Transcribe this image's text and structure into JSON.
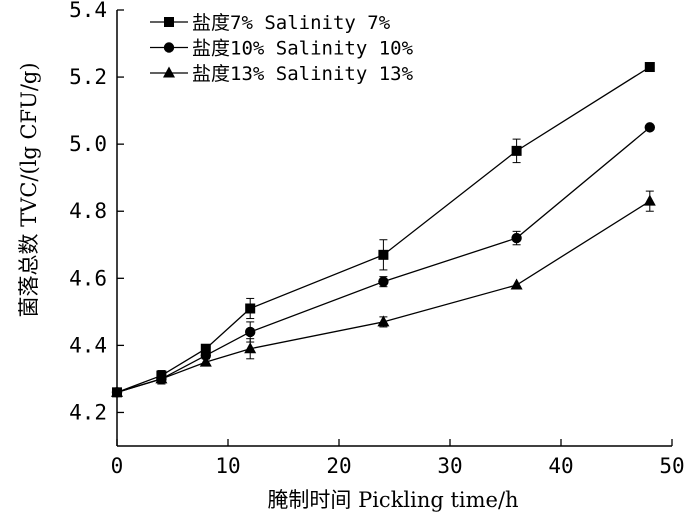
{
  "chart_data": {
    "type": "line",
    "xlabel": "腌制时间 Pickling time/h",
    "ylabel": "菌落总数 TVC/(lg CFU/g)",
    "xlim": [
      0,
      50
    ],
    "ylim": [
      4.1,
      5.4
    ],
    "xticks": [
      "0",
      "10",
      "20",
      "30",
      "40",
      "50"
    ],
    "yticks": [
      "4.2",
      "4.4",
      "4.6",
      "4.8",
      "5.0",
      "5.2",
      "5.4"
    ],
    "grid": false,
    "legend_position": "top-left",
    "x": [
      0,
      4,
      8,
      12,
      24,
      36,
      48
    ],
    "series": [
      {
        "name": "盐度7% Salinity 7%",
        "marker": "square",
        "values": [
          4.26,
          4.31,
          4.39,
          4.51,
          4.67,
          4.98,
          5.23
        ],
        "errors": [
          0.0,
          0.015,
          0.01,
          0.03,
          0.045,
          0.035,
          0.0
        ]
      },
      {
        "name": "盐度10% Salinity 10%",
        "marker": "circle",
        "values": [
          4.26,
          4.3,
          4.37,
          4.44,
          4.59,
          4.72,
          5.05
        ],
        "errors": [
          0.0,
          0.015,
          0.01,
          0.03,
          0.015,
          0.02,
          0.0
        ]
      },
      {
        "name": "盐度13% Salinity 13%",
        "marker": "triangle",
        "values": [
          4.26,
          4.3,
          4.35,
          4.39,
          4.47,
          4.58,
          4.83
        ],
        "errors": [
          0.0,
          0.015,
          0.01,
          0.03,
          0.015,
          0.0,
          0.03
        ]
      }
    ]
  }
}
